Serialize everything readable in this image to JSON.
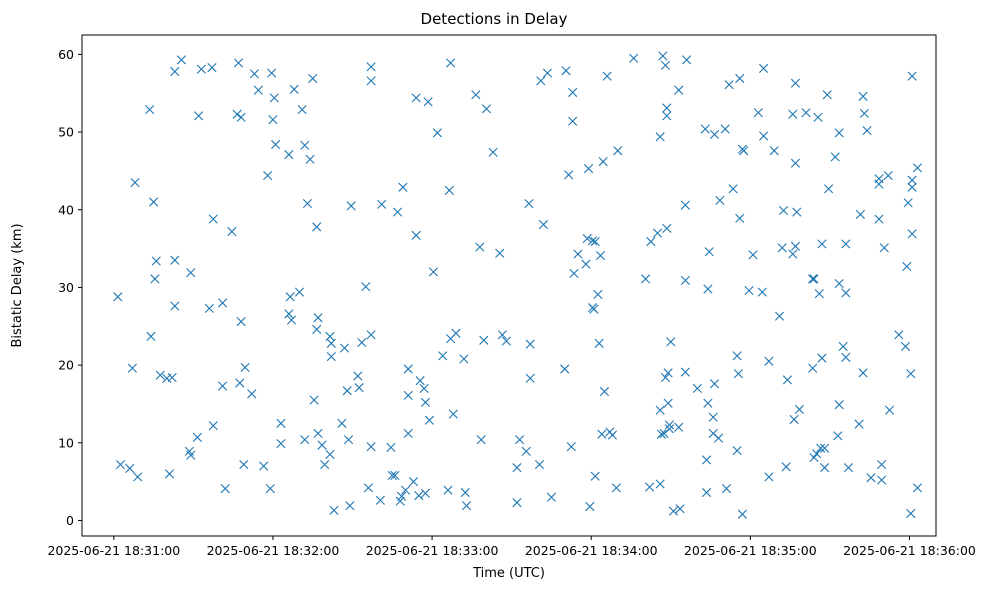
{
  "chart_data": {
    "type": "scatter",
    "title": "Detections in Delay",
    "xlabel": "Time (UTC)",
    "ylabel": "Bistatic Delay (km)",
    "marker": "x",
    "color": "#1f77b4",
    "grid": false,
    "xlim": [
      -12,
      310
    ],
    "ylim": [
      -2,
      62.5
    ],
    "x_ticks": [
      {
        "value": 0,
        "label": "2025-06-21 18:31:00"
      },
      {
        "value": 60,
        "label": "2025-06-21 18:32:00"
      },
      {
        "value": 120,
        "label": "2025-06-21 18:33:00"
      },
      {
        "value": 180,
        "label": "2025-06-21 18:34:00"
      },
      {
        "value": 240,
        "label": "2025-06-21 18:35:00"
      },
      {
        "value": 300,
        "label": "2025-06-21 18:36:00"
      }
    ],
    "y_ticks": [
      {
        "value": 0,
        "label": "0"
      },
      {
        "value": 10,
        "label": "10"
      },
      {
        "value": 20,
        "label": "20"
      },
      {
        "value": 30,
        "label": "30"
      },
      {
        "value": 40,
        "label": "40"
      },
      {
        "value": 50,
        "label": "50"
      },
      {
        "value": 60,
        "label": "60"
      }
    ],
    "x_units": "seconds after 2025-06-21 18:31:00 UTC",
    "points": [
      [
        1.5,
        28.8
      ],
      [
        2.5,
        7.2
      ],
      [
        6,
        6.7
      ],
      [
        7,
        19.6
      ],
      [
        8,
        43.5
      ],
      [
        9,
        5.6
      ],
      [
        13.5,
        52.9
      ],
      [
        14,
        23.7
      ],
      [
        15,
        41
      ],
      [
        15.5,
        31.1
      ],
      [
        16,
        33.4
      ],
      [
        17.5,
        18.7
      ],
      [
        20,
        18.3
      ],
      [
        21,
        6
      ],
      [
        22,
        18.4
      ],
      [
        23,
        27.6
      ],
      [
        23,
        57.8
      ],
      [
        23,
        33.5
      ],
      [
        25.5,
        59.3
      ],
      [
        28.5,
        8.9
      ],
      [
        29,
        31.9
      ],
      [
        29,
        8.4
      ],
      [
        31.5,
        10.7
      ],
      [
        32,
        52.1
      ],
      [
        33,
        58.1
      ],
      [
        36,
        27.3
      ],
      [
        37,
        58.3
      ],
      [
        37.5,
        38.8
      ],
      [
        37.5,
        12.2
      ],
      [
        41,
        17.3
      ],
      [
        41,
        28
      ],
      [
        42,
        4.1
      ],
      [
        44.5,
        37.2
      ],
      [
        46.5,
        52.3
      ],
      [
        47,
        58.9
      ],
      [
        47.5,
        17.7
      ],
      [
        48,
        25.6
      ],
      [
        48,
        51.9
      ],
      [
        49,
        7.2
      ],
      [
        49.5,
        19.7
      ],
      [
        52,
        16.3
      ],
      [
        53,
        57.5
      ],
      [
        54.5,
        55.4
      ],
      [
        56.5,
        7
      ],
      [
        58,
        44.4
      ],
      [
        59,
        4.1
      ],
      [
        59.5,
        57.6
      ],
      [
        60,
        51.6
      ],
      [
        60.5,
        54.4
      ],
      [
        61,
        48.4
      ],
      [
        63,
        12.5
      ],
      [
        63,
        9.9
      ],
      [
        66,
        26.6
      ],
      [
        66,
        47.1
      ],
      [
        66.5,
        28.8
      ],
      [
        67,
        25.8
      ],
      [
        68,
        55.5
      ],
      [
        70,
        29.4
      ],
      [
        71,
        52.9
      ],
      [
        72,
        48.3
      ],
      [
        72,
        10.4
      ],
      [
        73,
        40.8
      ],
      [
        74,
        46.5
      ],
      [
        75,
        56.9
      ],
      [
        75.5,
        15.5
      ],
      [
        76.5,
        37.8
      ],
      [
        76.5,
        24.6
      ],
      [
        77,
        26.1
      ],
      [
        77,
        11.2
      ],
      [
        78.5,
        9.7
      ],
      [
        79.5,
        7.2
      ],
      [
        81.5,
        8.5
      ],
      [
        81.5,
        23.7
      ],
      [
        82,
        22.8
      ],
      [
        82,
        21.1
      ],
      [
        83,
        1.3
      ],
      [
        86,
        12.5
      ],
      [
        87,
        22.2
      ],
      [
        88,
        16.7
      ],
      [
        88.5,
        10.4
      ],
      [
        89,
        1.9
      ],
      [
        89.5,
        40.5
      ],
      [
        92,
        18.6
      ],
      [
        92.5,
        17.1
      ],
      [
        93.5,
        22.9
      ],
      [
        95,
        30.1
      ],
      [
        96,
        4.2
      ],
      [
        97,
        23.9
      ],
      [
        97,
        9.5
      ],
      [
        97,
        56.6
      ],
      [
        97,
        58.4
      ],
      [
        100.5,
        2.6
      ],
      [
        101,
        40.7
      ],
      [
        104.5,
        9.4
      ],
      [
        105,
        5.8
      ],
      [
        106,
        5.8
      ],
      [
        107,
        39.7
      ],
      [
        108,
        2.5
      ],
      [
        108.5,
        3.1
      ],
      [
        109,
        42.9
      ],
      [
        110,
        3.9
      ],
      [
        111,
        19.5
      ],
      [
        111,
        16.1
      ],
      [
        111,
        11.2
      ],
      [
        113,
        5
      ],
      [
        114,
        54.4
      ],
      [
        114,
        36.7
      ],
      [
        115,
        3.2
      ],
      [
        115.5,
        18
      ],
      [
        117,
        17
      ],
      [
        117.5,
        15.2
      ],
      [
        117.5,
        3.5
      ],
      [
        118.5,
        53.9
      ],
      [
        119,
        12.9
      ],
      [
        120.5,
        32
      ],
      [
        122,
        49.9
      ],
      [
        124,
        21.2
      ],
      [
        126,
        3.9
      ],
      [
        126.5,
        42.5
      ],
      [
        127,
        58.9
      ],
      [
        127,
        23.4
      ],
      [
        128,
        13.7
      ],
      [
        129,
        24.1
      ],
      [
        132,
        20.8
      ],
      [
        132.5,
        3.6
      ],
      [
        133,
        1.9
      ],
      [
        136.5,
        54.8
      ],
      [
        138,
        35.2
      ],
      [
        138.5,
        10.4
      ],
      [
        139.5,
        23.2
      ],
      [
        140.5,
        53
      ],
      [
        143,
        47.4
      ],
      [
        145.5,
        34.4
      ],
      [
        146.5,
        23.9
      ],
      [
        148,
        23.1
      ],
      [
        152,
        2.3
      ],
      [
        152,
        6.8
      ],
      [
        153,
        10.4
      ],
      [
        155.5,
        8.9
      ],
      [
        156.5,
        40.8
      ],
      [
        157,
        18.3
      ],
      [
        157,
        22.7
      ],
      [
        160.5,
        7.2
      ],
      [
        161,
        56.6
      ],
      [
        162,
        38.1
      ],
      [
        163.5,
        57.6
      ],
      [
        165,
        3
      ],
      [
        170,
        19.5
      ],
      [
        170.5,
        57.9
      ],
      [
        171.5,
        44.5
      ],
      [
        172.5,
        9.5
      ],
      [
        173,
        55.1
      ],
      [
        173,
        51.4
      ],
      [
        173.5,
        31.8
      ],
      [
        175,
        34.3
      ],
      [
        178,
        33
      ],
      [
        178.5,
        36.3
      ],
      [
        179,
        45.3
      ],
      [
        179.5,
        1.8
      ],
      [
        180.5,
        36
      ],
      [
        180.5,
        27.4
      ],
      [
        181,
        27.2
      ],
      [
        181.5,
        35.9
      ],
      [
        181.5,
        5.7
      ],
      [
        182.5,
        29.1
      ],
      [
        183,
        22.8
      ],
      [
        183.5,
        34.1
      ],
      [
        184,
        11.1
      ],
      [
        184.5,
        46.2
      ],
      [
        185,
        16.6
      ],
      [
        186,
        57.2
      ],
      [
        187,
        11.4
      ],
      [
        188,
        11
      ],
      [
        189.5,
        4.2
      ],
      [
        190,
        47.6
      ],
      [
        196,
        59.5
      ],
      [
        200.5,
        31.1
      ],
      [
        202,
        4.3
      ],
      [
        202.5,
        35.9
      ],
      [
        205,
        37
      ],
      [
        206,
        4.7
      ],
      [
        206,
        49.4
      ],
      [
        206,
        14.2
      ],
      [
        206.5,
        11.1
      ],
      [
        207,
        59.8
      ],
      [
        207.5,
        11.2
      ],
      [
        208,
        58.6
      ],
      [
        208,
        18.4
      ],
      [
        208.5,
        52.1
      ],
      [
        208.5,
        53.1
      ],
      [
        208.5,
        37.6
      ],
      [
        209,
        19
      ],
      [
        209,
        15.1
      ],
      [
        209.5,
        12.3
      ],
      [
        209.5,
        11.8
      ],
      [
        210,
        23
      ],
      [
        211,
        1.2
      ],
      [
        213,
        12
      ],
      [
        213,
        55.4
      ],
      [
        213.5,
        1.5
      ],
      [
        215.5,
        30.9
      ],
      [
        215.5,
        19.1
      ],
      [
        215.5,
        40.6
      ],
      [
        216,
        59.3
      ],
      [
        220,
        17
      ],
      [
        223,
        50.4
      ],
      [
        223.5,
        7.8
      ],
      [
        223.5,
        3.6
      ],
      [
        224,
        15.1
      ],
      [
        224,
        29.8
      ],
      [
        224.5,
        34.6
      ],
      [
        226,
        13.3
      ],
      [
        226,
        11.2
      ],
      [
        226.5,
        49.7
      ],
      [
        226.5,
        17.6
      ],
      [
        228,
        10.6
      ],
      [
        228.5,
        41.2
      ],
      [
        230.5,
        50.4
      ],
      [
        231,
        4.1
      ],
      [
        232,
        56.1
      ],
      [
        233.5,
        42.7
      ],
      [
        235,
        9
      ],
      [
        235,
        21.2
      ],
      [
        235.5,
        18.9
      ],
      [
        236,
        38.9
      ],
      [
        236,
        56.9
      ],
      [
        237,
        47.8
      ],
      [
        237,
        0.8
      ],
      [
        237.5,
        47.6
      ],
      [
        239.5,
        29.6
      ],
      [
        241,
        34.2
      ],
      [
        243,
        52.5
      ],
      [
        244.5,
        29.4
      ],
      [
        245,
        58.2
      ],
      [
        245,
        49.5
      ],
      [
        247,
        5.6
      ],
      [
        247,
        20.5
      ],
      [
        249,
        47.6
      ],
      [
        251,
        26.3
      ],
      [
        252,
        35.1
      ],
      [
        252.5,
        39.9
      ],
      [
        253.5,
        6.9
      ],
      [
        254,
        18.1
      ],
      [
        256,
        52.3
      ],
      [
        256,
        34.3
      ],
      [
        256.5,
        13
      ],
      [
        257,
        56.3
      ],
      [
        257,
        46
      ],
      [
        257,
        35.3
      ],
      [
        257.5,
        39.7
      ],
      [
        258.5,
        14.3
      ],
      [
        261,
        52.5
      ],
      [
        263.5,
        31.1
      ],
      [
        263.5,
        19.6
      ],
      [
        264,
        31.1
      ],
      [
        264,
        8.1
      ],
      [
        265,
        8.6
      ],
      [
        265.5,
        51.9
      ],
      [
        266,
        29.2
      ],
      [
        266.5,
        9.3
      ],
      [
        267,
        35.6
      ],
      [
        267,
        20.9
      ],
      [
        268,
        6.8
      ],
      [
        268,
        9.3
      ],
      [
        269,
        54.8
      ],
      [
        269.5,
        42.7
      ],
      [
        272,
        46.8
      ],
      [
        273,
        10.9
      ],
      [
        273.5,
        49.9
      ],
      [
        273.5,
        14.9
      ],
      [
        273.5,
        30.5
      ],
      [
        275,
        22.4
      ],
      [
        276,
        35.6
      ],
      [
        276,
        29.3
      ],
      [
        276,
        21
      ],
      [
        277,
        6.8
      ],
      [
        281,
        12.4
      ],
      [
        281.5,
        39.4
      ],
      [
        282.5,
        19
      ],
      [
        282.5,
        54.6
      ],
      [
        283,
        52.4
      ],
      [
        284,
        50.2
      ],
      [
        285.5,
        5.5
      ],
      [
        288.5,
        43.3
      ],
      [
        288.5,
        44
      ],
      [
        288.5,
        38.8
      ],
      [
        289.5,
        7.2
      ],
      [
        289.5,
        5.2
      ],
      [
        290.5,
        35.1
      ],
      [
        292,
        44.4
      ],
      [
        292.5,
        14.2
      ],
      [
        296,
        23.9
      ],
      [
        298.5,
        22.4
      ],
      [
        299,
        32.7
      ],
      [
        299.5,
        40.9
      ],
      [
        300.5,
        0.9
      ],
      [
        300.5,
        18.9
      ],
      [
        301,
        36.9
      ],
      [
        301,
        42.9
      ],
      [
        301,
        43.8
      ],
      [
        301,
        57.2
      ],
      [
        303,
        45.4
      ],
      [
        303,
        4.2
      ]
    ]
  }
}
